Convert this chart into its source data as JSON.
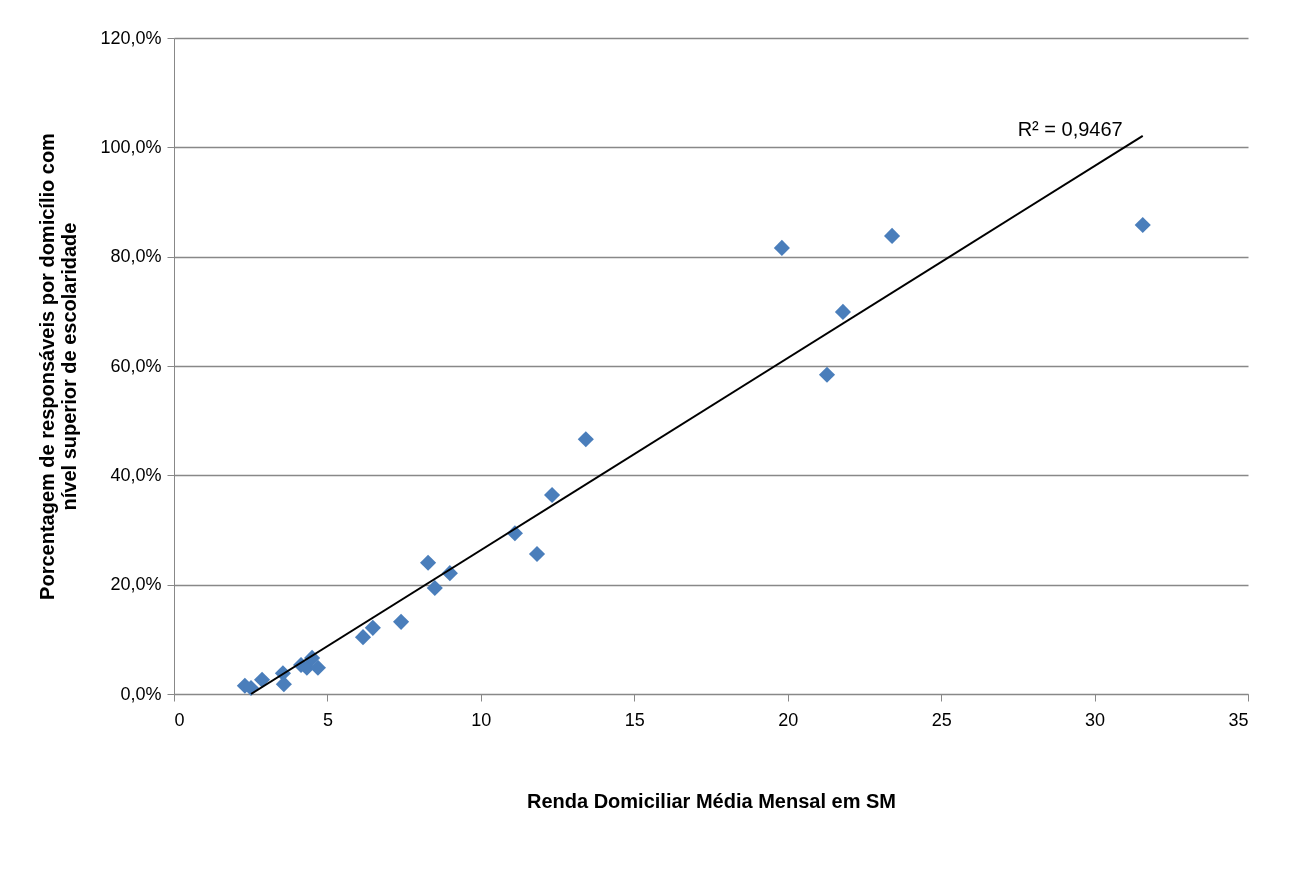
{
  "chart_data": {
    "type": "scatter",
    "xlabel": "Renda Domiciliar Média Mensal em SM",
    "ylabel": "Porcentagem de responsáveis por domicílio com\nnível superior de escolaridade",
    "xlim": [
      0,
      35
    ],
    "xticks": [
      0,
      5,
      10,
      15,
      20,
      25,
      30,
      35
    ],
    "ylim": [
      0,
      120
    ],
    "yticks": [
      {
        "value": 0,
        "label": "0,0%"
      },
      {
        "value": 20,
        "label": "20,0%"
      },
      {
        "value": 40,
        "label": "40,0%"
      },
      {
        "value": 60,
        "label": "60,0%"
      },
      {
        "value": 80,
        "label": "80,0%"
      },
      {
        "value": 100,
        "label": "100,0%"
      },
      {
        "value": 120,
        "label": "120,0%"
      }
    ],
    "grid": "y",
    "annotations": [
      "R² = 0,9467"
    ],
    "series": [
      {
        "marker": "diamond",
        "color": "#4a7ebb",
        "x": [
          2.31,
          2.51,
          2.87,
          3.55,
          3.58,
          4.14,
          4.33,
          4.5,
          4.69,
          6.16,
          6.48,
          7.4,
          8.28,
          8.5,
          8.99,
          11.11,
          11.83,
          12.32,
          13.42,
          19.81,
          21.28,
          21.8,
          23.4,
          31.57
        ],
        "values": [
          1.5,
          1.1,
          2.6,
          3.8,
          1.8,
          5.3,
          4.8,
          6.6,
          4.8,
          10.4,
          12.1,
          13.2,
          24.0,
          19.4,
          22.1,
          29.4,
          25.6,
          36.4,
          46.6,
          81.6,
          58.4,
          69.9,
          83.8,
          85.8
        ]
      },
      {
        "type": "line",
        "color": "#000000",
        "x": [
          2.51,
          31.57
        ],
        "values": [
          0,
          102.1
        ]
      }
    ]
  }
}
